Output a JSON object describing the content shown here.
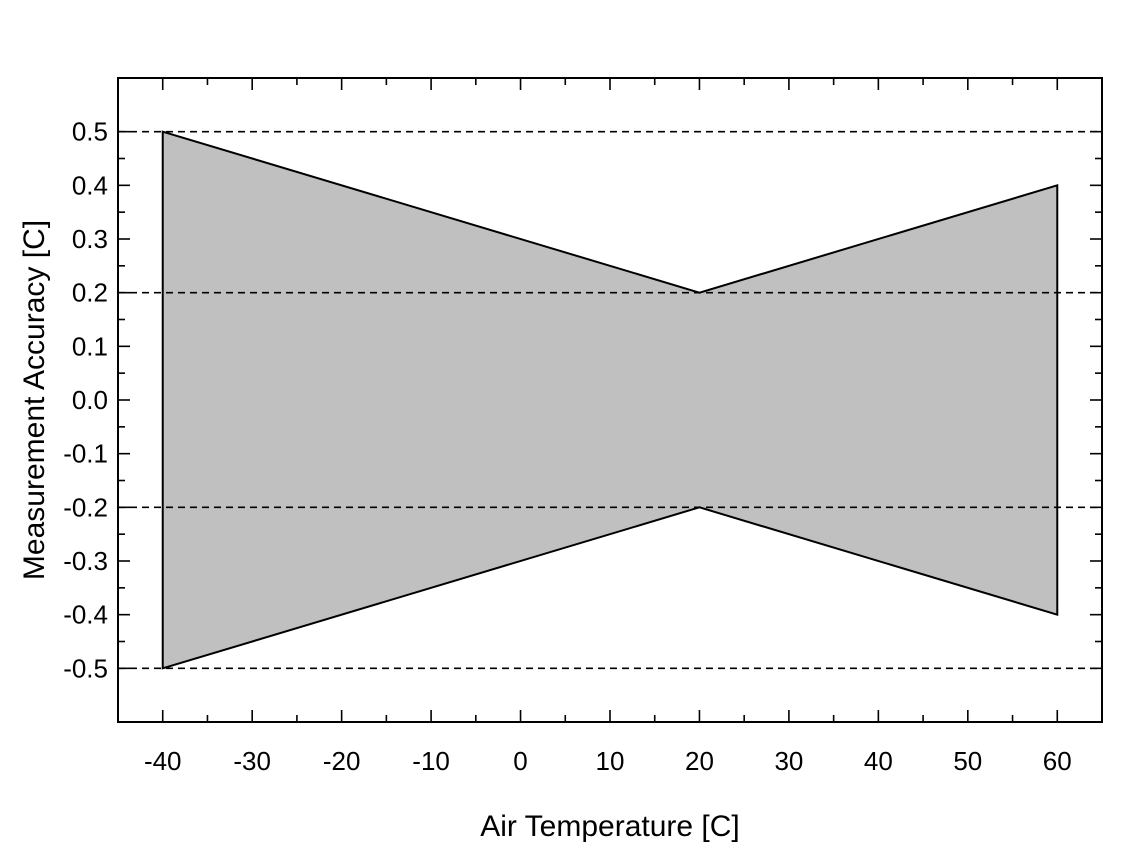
{
  "chart_data": {
    "type": "area",
    "title": "",
    "xlabel": "Air Temperature [C]",
    "ylabel": "Measurement Accuracy [C]",
    "xlim": [
      -45,
      65
    ],
    "ylim": [
      -0.6,
      0.6
    ],
    "xticks": [
      -40,
      -30,
      -20,
      -10,
      0,
      10,
      20,
      30,
      40,
      50,
      60
    ],
    "xtick_labels": [
      "-40",
      "-30",
      "-20",
      "-10",
      "0",
      "10",
      "20",
      "30",
      "40",
      "50",
      "60"
    ],
    "yticks": [
      0.5,
      0.4,
      0.3,
      0.2,
      0.1,
      0.0,
      -0.1,
      -0.2,
      -0.3,
      -0.4,
      -0.5
    ],
    "ytick_labels": [
      "0.5",
      "0.4",
      "0.3",
      "0.2",
      "0.1",
      "0.0",
      "-0.1",
      "-0.2",
      "-0.3",
      "-0.4",
      "-0.5"
    ],
    "series": [
      {
        "x": [
          -40,
          20,
          60
        ],
        "upper": [
          0.5,
          0.2,
          0.4
        ],
        "lower": [
          -0.5,
          -0.2,
          -0.4
        ]
      }
    ],
    "reference_lines_y": [
      0.5,
      0.2,
      -0.2,
      -0.5
    ],
    "fill_color": "#c0c0c0",
    "line_color": "#000000",
    "grid": false,
    "legend": "none"
  }
}
